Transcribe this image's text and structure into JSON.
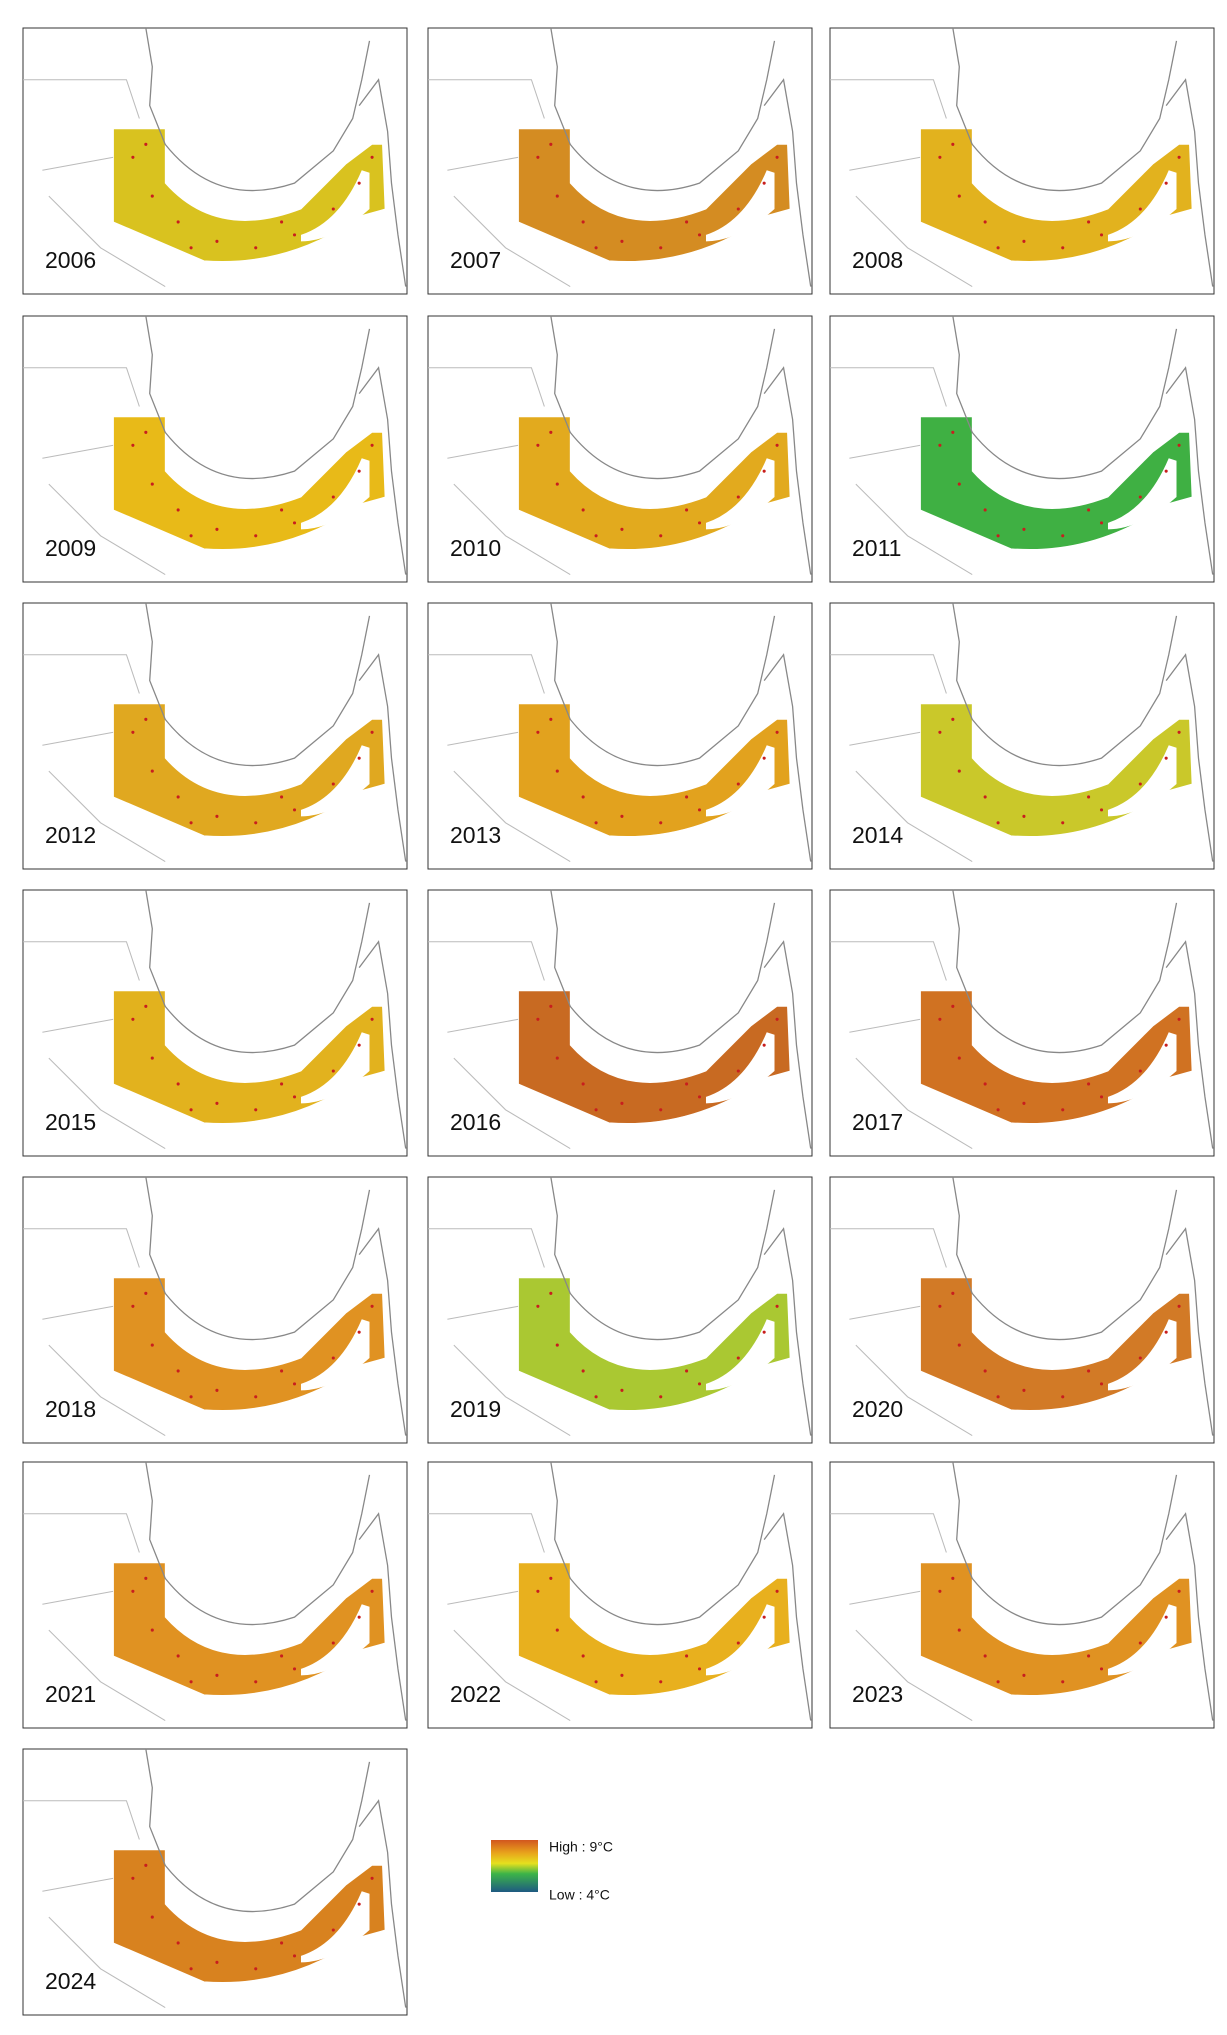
{
  "panels": [
    {
      "label": "2006",
      "fill": "#d9c21f"
    },
    {
      "label": "2007",
      "fill": "#d48c22"
    },
    {
      "label": "2008",
      "fill": "#e2b21e"
    },
    {
      "label": "2009",
      "fill": "#e8ba18"
    },
    {
      "label": "2010",
      "fill": "#e2aa1e"
    },
    {
      "label": "2011",
      "fill": "#3fb043"
    },
    {
      "label": "2012",
      "fill": "#e0a820"
    },
    {
      "label": "2013",
      "fill": "#e2a21e"
    },
    {
      "label": "2014",
      "fill": "#cac82a"
    },
    {
      "label": "2015",
      "fill": "#e2b21e"
    },
    {
      "label": "2016",
      "fill": "#c86a22"
    },
    {
      "label": "2017",
      "fill": "#d07222"
    },
    {
      "label": "2018",
      "fill": "#e09222"
    },
    {
      "label": "2019",
      "fill": "#aac832"
    },
    {
      "label": "2020",
      "fill": "#d27a26"
    },
    {
      "label": "2021",
      "fill": "#e09222"
    },
    {
      "label": "2022",
      "fill": "#e8b01e"
    },
    {
      "label": "2023",
      "fill": "#e09222"
    },
    {
      "label": "2024",
      "fill": "#d8821f"
    }
  ],
  "legend": {
    "high": "High : 9°C",
    "low": "Low : 4°C"
  }
}
